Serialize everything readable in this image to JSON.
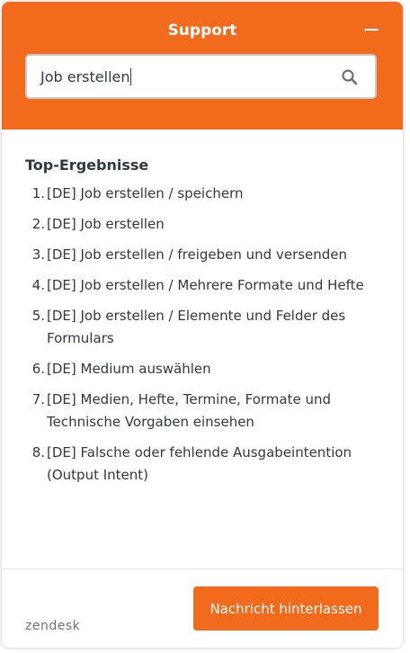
{
  "header": {
    "title": "Support"
  },
  "search": {
    "value": "Job erstellen"
  },
  "results": {
    "heading": "Top-Ergebnisse",
    "items": [
      {
        "number": "1.",
        "label": "[DE] Job erstellen / speichern"
      },
      {
        "number": "2.",
        "label": "[DE] Job erstellen"
      },
      {
        "number": "3.",
        "label": "[DE] Job erstellen / freigeben und versenden"
      },
      {
        "number": "4.",
        "label": "[DE] Job erstellen / Mehrere Formate und Hefte"
      },
      {
        "number": "5.",
        "label": "[DE] Job erstellen / Elemente und Felder des Formulars"
      },
      {
        "number": "6.",
        "label": "[DE] Medium auswählen"
      },
      {
        "number": "7.",
        "label": "[DE] Medien, Hefte, Termine, Formate und Technische Vorgaben einsehen"
      },
      {
        "number": "8.",
        "label": "[DE] Falsche oder fehlende Ausgabeintention (Output Intent)"
      }
    ]
  },
  "footer": {
    "button": "Nachricht hinterlassen",
    "brand": "zendesk"
  }
}
